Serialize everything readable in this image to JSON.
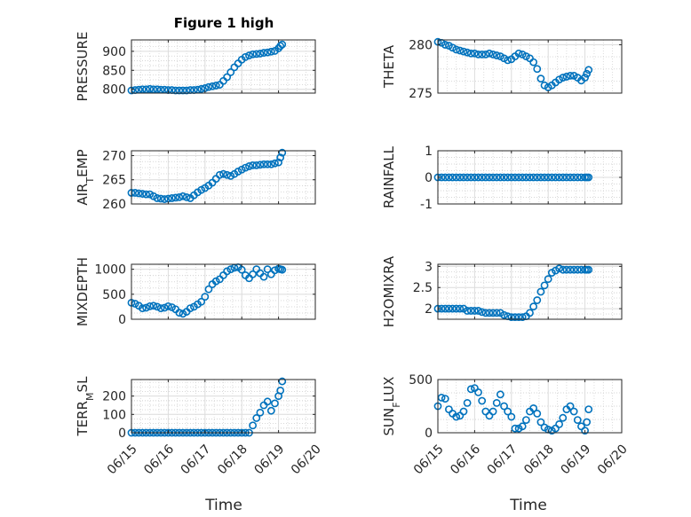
{
  "figure": {
    "title": "Figure 1 high",
    "xlabel": "Time"
  },
  "chart_data": [
    {
      "type": "scatter",
      "ylabel": "PRESSURE",
      "ylim": [
        790,
        930
      ],
      "yticks": [
        800,
        850,
        900
      ],
      "xlim": [
        0,
        5
      ],
      "xticks": [
        "06/15",
        "06/16",
        "06/17",
        "06/18",
        "06/19",
        "06/20"
      ],
      "show_xticklabels": false,
      "grid": true,
      "marker": "open-circle",
      "color": "#0072BD",
      "series": [
        {
          "x": [
            0,
            0.1,
            0.2,
            0.3,
            0.4,
            0.5,
            0.6,
            0.7,
            0.8,
            0.9,
            1,
            1.1,
            1.2,
            1.3,
            1.4,
            1.5,
            1.6,
            1.7,
            1.8,
            1.9,
            2,
            2.1,
            2.2,
            2.3,
            2.4,
            2.5,
            2.6,
            2.7,
            2.8,
            2.9,
            3,
            3.1,
            3.2,
            3.3,
            3.4,
            3.5,
            3.6,
            3.7,
            3.8,
            3.9,
            4,
            4.05,
            4.1
          ],
          "y": [
            797,
            798,
            799,
            800,
            800,
            801,
            800,
            800,
            799,
            799,
            798,
            798,
            797,
            797,
            797,
            797,
            798,
            798,
            799,
            801,
            803,
            806,
            808,
            810,
            812,
            822,
            832,
            845,
            858,
            868,
            878,
            885,
            889,
            892,
            893,
            894,
            896,
            897,
            899,
            901,
            908,
            914,
            918
          ]
        }
      ]
    },
    {
      "type": "scatter",
      "ylabel": "THETA",
      "ylim": [
        275,
        280.5
      ],
      "yticks": [
        275,
        280
      ],
      "xlim": [
        0,
        5
      ],
      "xticks": [
        "06/15",
        "06/16",
        "06/17",
        "06/18",
        "06/19",
        "06/20"
      ],
      "show_xticklabels": false,
      "grid": true,
      "marker": "open-circle",
      "color": "#0072BD",
      "series": [
        {
          "x": [
            0,
            0.1,
            0.2,
            0.3,
            0.4,
            0.5,
            0.6,
            0.7,
            0.8,
            0.9,
            1,
            1.1,
            1.2,
            1.3,
            1.4,
            1.5,
            1.6,
            1.7,
            1.8,
            1.9,
            2,
            2.1,
            2.2,
            2.3,
            2.4,
            2.5,
            2.6,
            2.7,
            2.8,
            2.9,
            3,
            3.1,
            3.2,
            3.3,
            3.4,
            3.5,
            3.6,
            3.7,
            3.8,
            3.9,
            4,
            4.05,
            4.1
          ],
          "y": [
            280.3,
            280.2,
            280,
            279.9,
            279.7,
            279.5,
            279.4,
            279.3,
            279.2,
            279.1,
            279.1,
            279,
            279,
            279,
            279.1,
            279,
            278.9,
            278.8,
            278.6,
            278.4,
            278.5,
            278.8,
            279.1,
            279,
            278.8,
            278.6,
            278.2,
            277.5,
            276.5,
            275.8,
            275.6,
            275.8,
            276.1,
            276.4,
            276.6,
            276.7,
            276.8,
            276.8,
            276.6,
            276.3,
            276.6,
            277,
            277.4
          ]
        }
      ]
    },
    {
      "type": "scatter",
      "ylabel": "AIR_TEMP",
      "ylim": [
        260,
        271
      ],
      "yticks": [
        260,
        265,
        270
      ],
      "xlim": [
        0,
        5
      ],
      "xticks": [
        "06/15",
        "06/16",
        "06/17",
        "06/18",
        "06/19",
        "06/20"
      ],
      "show_xticklabels": false,
      "grid": true,
      "marker": "open-circle",
      "color": "#0072BD",
      "series": [
        {
          "x": [
            0,
            0.1,
            0.2,
            0.3,
            0.4,
            0.5,
            0.6,
            0.7,
            0.8,
            0.9,
            1,
            1.1,
            1.2,
            1.3,
            1.4,
            1.5,
            1.6,
            1.7,
            1.8,
            1.9,
            2,
            2.1,
            2.2,
            2.3,
            2.4,
            2.5,
            2.6,
            2.7,
            2.8,
            2.9,
            3,
            3.1,
            3.2,
            3.3,
            3.4,
            3.5,
            3.6,
            3.7,
            3.8,
            3.9,
            4,
            4.05,
            4.1
          ],
          "y": [
            262.3,
            262.3,
            262.2,
            262.1,
            262,
            262,
            261.6,
            261.2,
            261.1,
            261,
            261.1,
            261.2,
            261.3,
            261.4,
            261.6,
            261.4,
            261.2,
            261.8,
            262.4,
            262.9,
            263.3,
            263.8,
            264.4,
            265.2,
            266,
            266.2,
            266,
            265.8,
            266.2,
            266.7,
            267.1,
            267.5,
            267.8,
            268,
            268,
            268.1,
            268.2,
            268.2,
            268.2,
            268.4,
            268.6,
            269.6,
            270.6
          ]
        }
      ]
    },
    {
      "type": "scatter",
      "ylabel": "RAINFALL",
      "ylim": [
        -1,
        1
      ],
      "yticks": [
        -1,
        0,
        1
      ],
      "xlim": [
        0,
        5
      ],
      "xticks": [
        "06/15",
        "06/16",
        "06/17",
        "06/18",
        "06/19",
        "06/20"
      ],
      "show_xticklabels": false,
      "grid": true,
      "marker": "open-circle",
      "color": "#0072BD",
      "series": [
        {
          "x": [
            0,
            0.1,
            0.2,
            0.3,
            0.4,
            0.5,
            0.6,
            0.7,
            0.8,
            0.9,
            1,
            1.1,
            1.2,
            1.3,
            1.4,
            1.5,
            1.6,
            1.7,
            1.8,
            1.9,
            2,
            2.1,
            2.2,
            2.3,
            2.4,
            2.5,
            2.6,
            2.7,
            2.8,
            2.9,
            3,
            3.1,
            3.2,
            3.3,
            3.4,
            3.5,
            3.6,
            3.7,
            3.8,
            3.9,
            4,
            4.05,
            4.1
          ],
          "y": [
            0,
            0,
            0,
            0,
            0,
            0,
            0,
            0,
            0,
            0,
            0,
            0,
            0,
            0,
            0,
            0,
            0,
            0,
            0,
            0,
            0,
            0,
            0,
            0,
            0,
            0,
            0,
            0,
            0,
            0,
            0,
            0,
            0,
            0,
            0,
            0,
            0,
            0,
            0,
            0,
            0,
            0,
            0
          ]
        }
      ]
    },
    {
      "type": "scatter",
      "ylabel": "MIXDEPTH",
      "ylim": [
        0,
        1100
      ],
      "yticks": [
        0,
        500,
        1000
      ],
      "xlim": [
        0,
        5
      ],
      "xticks": [
        "06/15",
        "06/16",
        "06/17",
        "06/18",
        "06/19",
        "06/20"
      ],
      "show_xticklabels": false,
      "grid": true,
      "marker": "open-circle",
      "color": "#0072BD",
      "series": [
        {
          "x": [
            0,
            0.1,
            0.2,
            0.3,
            0.4,
            0.5,
            0.6,
            0.7,
            0.8,
            0.9,
            1,
            1.1,
            1.2,
            1.3,
            1.4,
            1.5,
            1.6,
            1.7,
            1.8,
            1.9,
            2,
            2.1,
            2.2,
            2.3,
            2.4,
            2.5,
            2.6,
            2.7,
            2.8,
            2.9,
            3,
            3.1,
            3.2,
            3.3,
            3.4,
            3.5,
            3.6,
            3.7,
            3.8,
            3.9,
            4,
            4.05,
            4.1
          ],
          "y": [
            330,
            310,
            270,
            220,
            230,
            260,
            270,
            250,
            220,
            230,
            260,
            240,
            200,
            130,
            110,
            150,
            220,
            250,
            300,
            350,
            450,
            600,
            700,
            760,
            800,
            880,
            960,
            1000,
            1030,
            1040,
            990,
            880,
            820,
            900,
            1000,
            920,
            850,
            1000,
            900,
            980,
            1010,
            1000,
            990
          ]
        }
      ]
    },
    {
      "type": "scatter",
      "ylabel": "H2OMIXRA",
      "ylim": [
        1.75,
        3.05
      ],
      "yticks": [
        2,
        2.5,
        3
      ],
      "xlim": [
        0,
        5
      ],
      "xticks": [
        "06/15",
        "06/16",
        "06/17",
        "06/18",
        "06/19",
        "06/20"
      ],
      "show_xticklabels": false,
      "grid": true,
      "marker": "open-circle",
      "color": "#0072BD",
      "series": [
        {
          "x": [
            0,
            0.1,
            0.2,
            0.3,
            0.4,
            0.5,
            0.6,
            0.7,
            0.8,
            0.9,
            1,
            1.1,
            1.2,
            1.3,
            1.4,
            1.5,
            1.6,
            1.7,
            1.8,
            1.9,
            2,
            2.1,
            2.2,
            2.3,
            2.4,
            2.5,
            2.6,
            2.7,
            2.8,
            2.9,
            3,
            3.1,
            3.2,
            3.3,
            3.4,
            3.5,
            3.6,
            3.7,
            3.8,
            3.9,
            4,
            4.05,
            4.1
          ],
          "y": [
            2,
            2,
            2,
            2,
            2,
            2,
            2,
            2,
            1.95,
            1.95,
            1.95,
            1.95,
            1.92,
            1.9,
            1.9,
            1.9,
            1.9,
            1.9,
            1.85,
            1.82,
            1.8,
            1.8,
            1.8,
            1.8,
            1.82,
            1.9,
            2.05,
            2.2,
            2.4,
            2.55,
            2.7,
            2.85,
            2.9,
            2.95,
            2.92,
            2.92,
            2.92,
            2.92,
            2.92,
            2.92,
            2.92,
            2.92,
            2.92
          ]
        }
      ]
    },
    {
      "type": "scatter",
      "ylabel": "TERR_MSL",
      "ylim": [
        0,
        290
      ],
      "yticks": [
        0,
        100,
        200
      ],
      "xlim": [
        0,
        5
      ],
      "xticks": [
        "06/15",
        "06/16",
        "06/17",
        "06/18",
        "06/19",
        "06/20"
      ],
      "show_xticklabels": true,
      "grid": true,
      "marker": "open-circle",
      "color": "#0072BD",
      "series": [
        {
          "x": [
            0,
            0.1,
            0.2,
            0.3,
            0.4,
            0.5,
            0.6,
            0.7,
            0.8,
            0.9,
            1,
            1.1,
            1.2,
            1.3,
            1.4,
            1.5,
            1.6,
            1.7,
            1.8,
            1.9,
            2,
            2.1,
            2.2,
            2.3,
            2.4,
            2.5,
            2.6,
            2.7,
            2.8,
            2.9,
            3,
            3.1,
            3.2,
            3.3,
            3.4,
            3.5,
            3.6,
            3.7,
            3.8,
            3.9,
            4,
            4.05,
            4.1
          ],
          "y": [
            0,
            0,
            0,
            0,
            0,
            0,
            0,
            0,
            0,
            0,
            0,
            0,
            0,
            0,
            0,
            0,
            0,
            0,
            0,
            0,
            0,
            0,
            0,
            0,
            0,
            0,
            0,
            0,
            0,
            0,
            0,
            0,
            0,
            40,
            80,
            110,
            150,
            170,
            120,
            160,
            200,
            230,
            280
          ]
        }
      ]
    },
    {
      "type": "scatter",
      "ylabel": "SUN_FLUX",
      "ylim": [
        0,
        500
      ],
      "yticks": [
        0,
        500
      ],
      "xlim": [
        0,
        5
      ],
      "xticks": [
        "06/15",
        "06/16",
        "06/17",
        "06/18",
        "06/19",
        "06/20"
      ],
      "show_xticklabels": true,
      "grid": true,
      "marker": "open-circle",
      "color": "#0072BD",
      "series": [
        {
          "x": [
            0,
            0.1,
            0.2,
            0.3,
            0.4,
            0.5,
            0.6,
            0.7,
            0.8,
            0.9,
            1,
            1.1,
            1.2,
            1.3,
            1.4,
            1.5,
            1.6,
            1.7,
            1.8,
            1.9,
            2,
            2.1,
            2.2,
            2.3,
            2.4,
            2.5,
            2.6,
            2.7,
            2.8,
            2.9,
            3,
            3.1,
            3.2,
            3.3,
            3.4,
            3.5,
            3.6,
            3.7,
            3.8,
            3.9,
            4,
            4.05,
            4.1
          ],
          "y": [
            250,
            330,
            320,
            220,
            180,
            150,
            160,
            200,
            280,
            410,
            420,
            380,
            300,
            200,
            160,
            200,
            280,
            360,
            250,
            200,
            150,
            40,
            40,
            60,
            120,
            200,
            230,
            180,
            100,
            50,
            30,
            20,
            40,
            80,
            140,
            220,
            250,
            200,
            120,
            60,
            20,
            100,
            220
          ]
        }
      ]
    }
  ]
}
